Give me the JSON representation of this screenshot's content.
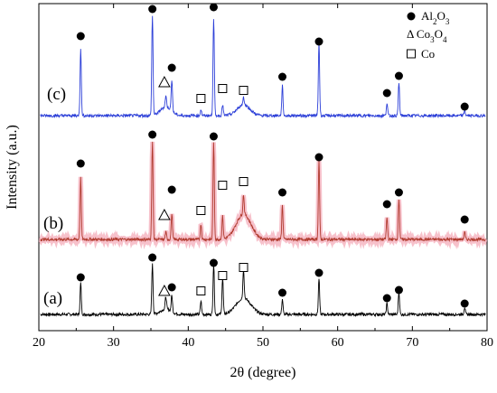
{
  "chart_data": {
    "type": "line",
    "title": "",
    "xlabel": "2θ (degree)",
    "ylabel": "Intensity (a.u.)",
    "xlim": [
      20,
      80
    ],
    "xticks": [
      20,
      30,
      40,
      50,
      60,
      70,
      80
    ],
    "yticks_shown": false,
    "legend": {
      "placement": "top-right",
      "entries": [
        {
          "marker": "filled-circle",
          "label_main": "Al",
          "sub1": "2",
          "mid": "O",
          "sub2": "3"
        },
        {
          "marker": "triangle-symbol",
          "label_main": "Δ Co",
          "sub1": "3",
          "mid": "O",
          "sub2": "4"
        },
        {
          "marker": "open-square",
          "label_main": "Co",
          "sub1": "",
          "mid": "",
          "sub2": ""
        }
      ]
    },
    "series": [
      {
        "name": "(a)",
        "color": "#000000",
        "halo": "",
        "peaks": [
          {
            "x": 25.6,
            "h": 35
          },
          {
            "x": 35.2,
            "h": 55
          },
          {
            "x": 37.0,
            "h": 14
          },
          {
            "x": 37.8,
            "h": 18
          },
          {
            "x": 41.7,
            "h": 15
          },
          {
            "x": 43.4,
            "h": 55
          },
          {
            "x": 44.6,
            "h": 40
          },
          {
            "x": 47.4,
            "h": 33
          },
          {
            "x": 52.6,
            "h": 17
          },
          {
            "x": 57.5,
            "h": 40
          },
          {
            "x": 66.6,
            "h": 12
          },
          {
            "x": 68.2,
            "h": 25
          },
          {
            "x": 77.0,
            "h": 8
          }
        ],
        "broad": [
          {
            "x": 47.4,
            "w": 1.4,
            "h": 18
          },
          {
            "x": 37.0,
            "w": 1.0,
            "h": 6
          }
        ],
        "annotations": [
          {
            "type": "circle",
            "x": 25.6,
            "y": 35
          },
          {
            "type": "circle",
            "x": 35.2,
            "y": 57
          },
          {
            "type": "triangle",
            "x": 36.8,
            "y": 20
          },
          {
            "type": "circle",
            "x": 37.8,
            "y": 24
          },
          {
            "type": "square",
            "x": 41.7,
            "y": 20
          },
          {
            "type": "circle",
            "x": 43.4,
            "y": 51
          },
          {
            "type": "square",
            "x": 44.6,
            "y": 37
          },
          {
            "type": "square",
            "x": 47.4,
            "y": 46
          },
          {
            "type": "circle",
            "x": 52.6,
            "y": 18
          },
          {
            "type": "circle",
            "x": 57.5,
            "y": 40
          },
          {
            "type": "circle",
            "x": 66.6,
            "y": 12
          },
          {
            "type": "circle",
            "x": 68.2,
            "y": 21
          },
          {
            "type": "circle",
            "x": 77.0,
            "y": 6
          }
        ]
      },
      {
        "name": "(b)",
        "color": "#b03a2e",
        "halo": "#f3a7b5",
        "peaks": [
          {
            "x": 25.6,
            "h": 68
          },
          {
            "x": 35.2,
            "h": 108
          },
          {
            "x": 37.0,
            "h": 8
          },
          {
            "x": 37.8,
            "h": 28
          },
          {
            "x": 41.7,
            "h": 17
          },
          {
            "x": 43.4,
            "h": 106
          },
          {
            "x": 44.6,
            "h": 25
          },
          {
            "x": 47.4,
            "h": 22
          },
          {
            "x": 52.6,
            "h": 38
          },
          {
            "x": 57.5,
            "h": 88
          },
          {
            "x": 66.6,
            "h": 24
          },
          {
            "x": 68.2,
            "h": 45
          },
          {
            "x": 77.0,
            "h": 8
          }
        ],
        "broad": [
          {
            "x": 47.4,
            "w": 1.4,
            "h": 28
          }
        ],
        "annotations": [
          {
            "type": "circle",
            "x": 25.6,
            "y": 78
          },
          {
            "type": "circle",
            "x": 35.2,
            "y": 110
          },
          {
            "type": "triangle",
            "x": 36.8,
            "y": 21
          },
          {
            "type": "circle",
            "x": 37.8,
            "y": 49
          },
          {
            "type": "square",
            "x": 41.7,
            "y": 26
          },
          {
            "type": "circle",
            "x": 43.4,
            "y": 108
          },
          {
            "type": "square",
            "x": 44.6,
            "y": 54
          },
          {
            "type": "square",
            "x": 47.4,
            "y": 58
          },
          {
            "type": "circle",
            "x": 52.6,
            "y": 46
          },
          {
            "type": "circle",
            "x": 57.5,
            "y": 85
          },
          {
            "type": "circle",
            "x": 66.6,
            "y": 33
          },
          {
            "type": "circle",
            "x": 68.2,
            "y": 46
          },
          {
            "type": "circle",
            "x": 77.0,
            "y": 16
          }
        ]
      },
      {
        "name": "(c)",
        "color": "#2c3fd8",
        "halo": "",
        "peaks": [
          {
            "x": 25.6,
            "h": 75
          },
          {
            "x": 35.2,
            "h": 110
          },
          {
            "x": 37.0,
            "h": 12
          },
          {
            "x": 37.8,
            "h": 35
          },
          {
            "x": 41.7,
            "h": 7
          },
          {
            "x": 43.4,
            "h": 108
          },
          {
            "x": 44.6,
            "h": 12
          },
          {
            "x": 47.4,
            "h": 9
          },
          {
            "x": 52.6,
            "h": 33
          },
          {
            "x": 57.5,
            "h": 82
          },
          {
            "x": 66.6,
            "h": 14
          },
          {
            "x": 68.2,
            "h": 36
          },
          {
            "x": 77.0,
            "h": 6
          }
        ],
        "broad": [
          {
            "x": 47.4,
            "w": 1.2,
            "h": 12
          },
          {
            "x": 37.0,
            "w": 1.0,
            "h": 10
          }
        ],
        "annotations": [
          {
            "type": "circle",
            "x": 25.6,
            "y": 82
          },
          {
            "type": "circle",
            "x": 35.2,
            "y": 112
          },
          {
            "type": "triangle",
            "x": 36.8,
            "y": 31
          },
          {
            "type": "circle",
            "x": 37.8,
            "y": 47
          },
          {
            "type": "square",
            "x": 41.7,
            "y": 13
          },
          {
            "type": "circle",
            "x": 43.4,
            "y": 114
          },
          {
            "type": "square",
            "x": 44.6,
            "y": 24
          },
          {
            "type": "square",
            "x": 47.4,
            "y": 22
          },
          {
            "type": "circle",
            "x": 52.6,
            "y": 37
          },
          {
            "type": "circle",
            "x": 57.5,
            "y": 76
          },
          {
            "type": "circle",
            "x": 66.6,
            "y": 19
          },
          {
            "type": "circle",
            "x": 68.2,
            "y": 38
          },
          {
            "type": "circle",
            "x": 77.0,
            "y": 4
          }
        ]
      }
    ]
  }
}
